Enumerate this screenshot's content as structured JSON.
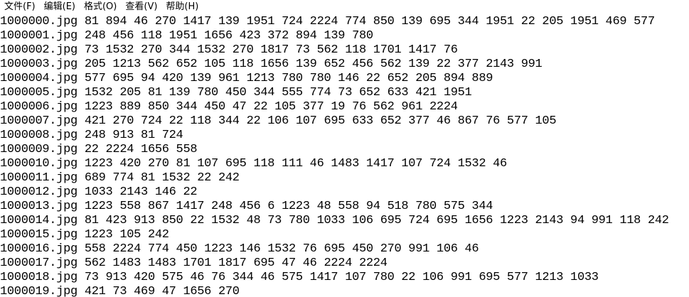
{
  "menu": {
    "items": [
      {
        "label": "文件(F)",
        "name": "menu-file"
      },
      {
        "label": "编辑(E)",
        "name": "menu-edit"
      },
      {
        "label": "格式(O)",
        "name": "menu-format"
      },
      {
        "label": "查看(V)",
        "name": "menu-view"
      },
      {
        "label": "帮助(H)",
        "name": "menu-help"
      }
    ]
  },
  "document": {
    "lines": [
      {
        "file": "1000000.jpg",
        "values": "81 894 46 270 1417 139 1951 724 2224 774 850 139 695 344 1951 22 205 1951 469 577"
      },
      {
        "file": "1000001.jpg",
        "values": "248 456 118 1951 1656 423 372 894 139 780"
      },
      {
        "file": "1000002.jpg",
        "values": "73 1532 270 344 1532 270 1817 73 562 118 1701 1417 76"
      },
      {
        "file": "1000003.jpg",
        "values": "205 1213 562 652 105 118 1656 139 652 456 562 139 22 377 2143 991"
      },
      {
        "file": "1000004.jpg",
        "values": "577 695 94 420 139 961 1213 780 780 146 22 652 205 894 889"
      },
      {
        "file": "1000005.jpg",
        "values": "1532 205 81 139 780 450 344 555 774 73 652 633 421 1951"
      },
      {
        "file": "1000006.jpg",
        "values": "1223 889 850 344 450 47 22 105 377 19 76 562 961 2224"
      },
      {
        "file": "1000007.jpg",
        "values": "421 270 724 22 118 344 22 106 107 695 633 652 377 46 867 76 577 105"
      },
      {
        "file": "1000008.jpg",
        "values": "248 913 81 724"
      },
      {
        "file": "1000009.jpg",
        "values": "22 2224 1656 558"
      },
      {
        "file": "1000010.jpg",
        "values": "1223 420 270 81 107 695 118 111 46 1483 1417 107 724 1532 46"
      },
      {
        "file": "1000011.jpg",
        "values": "689 774 81 1532 22 242"
      },
      {
        "file": "1000012.jpg",
        "values": "1033 2143 146 22"
      },
      {
        "file": "1000013.jpg",
        "values": "1223 558 867 1417 248 456 6 1223 48 558 94 518 780 575 344"
      },
      {
        "file": "1000014.jpg",
        "values": "81 423 913 850 22 1532 48 73 780 1033 106 695 724 695 1656 1223 2143 94 991 118 242"
      },
      {
        "file": "1000015.jpg",
        "values": "1223 105 242"
      },
      {
        "file": "1000016.jpg",
        "values": "558 2224 774 450 1223 146 1532 76 695 450 270 991 106 46"
      },
      {
        "file": "1000017.jpg",
        "values": "562 1483 1483 1701 1817 695 47 46 2224 2224"
      },
      {
        "file": "1000018.jpg",
        "values": "73 913 420 575 46 76 344 46 575 1417 107 780 22 106 991 695 577 1213 1033"
      },
      {
        "file": "1000019.jpg",
        "values": "421 73 469 47 1656 270"
      }
    ]
  }
}
